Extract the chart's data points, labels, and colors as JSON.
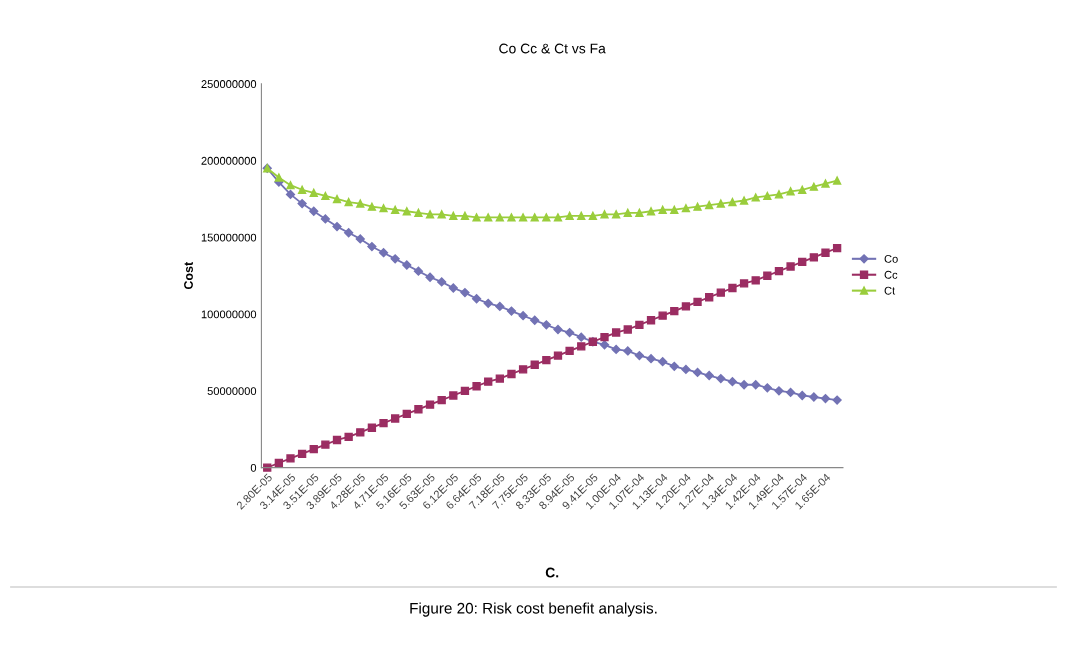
{
  "chart_data": {
    "type": "line",
    "title": "Co Cc & Ct vs Fa",
    "xlabel": "C.",
    "ylabel": "Cost",
    "annotations": [
      "Figure 20: Risk cost benefit analysis."
    ],
    "categories": [
      "2.80E-05",
      null,
      "3.14E-05",
      null,
      "3.51E-05",
      null,
      "3.89E-05",
      null,
      "4.28E-05",
      null,
      "4.71E-05",
      null,
      "5.16E-05",
      null,
      "5.63E-05",
      null,
      "6.12E-05",
      null,
      "6.64E-05",
      null,
      "7.18E-05",
      null,
      "7.75E-05",
      null,
      "8.33E-05",
      null,
      "8.94E-05",
      null,
      "9.41E-05",
      null,
      "1.00E-04",
      null,
      "1.07E-04",
      null,
      "1.13E-04",
      null,
      "1.20E-04",
      null,
      "1.27E-04",
      null,
      "1.34E-04",
      null,
      "1.42E-04",
      null,
      "1.49E-04",
      null,
      "1.57E-04",
      null,
      "1.65E-04",
      null
    ],
    "series": [
      {
        "name": "Co",
        "color": "#7272b4",
        "marker": "diamond",
        "values": [
          195000000,
          186000000,
          178000000,
          172000000,
          167000000,
          162000000,
          157000000,
          153000000,
          149000000,
          144000000,
          140000000,
          136000000,
          132000000,
          128000000,
          124000000,
          121000000,
          117000000,
          114000000,
          110000000,
          107000000,
          105000000,
          102000000,
          99000000,
          96000000,
          93000000,
          90000000,
          88000000,
          85000000,
          82000000,
          80000000,
          77000000,
          76000000,
          73000000,
          71000000,
          69000000,
          66000000,
          64000000,
          62000000,
          60000000,
          58000000,
          56000000,
          54000000,
          54000000,
          52000000,
          50000000,
          49000000,
          47000000,
          46000000,
          45000000,
          44000000
        ]
      },
      {
        "name": "Cc",
        "color": "#9b2d62",
        "marker": "square",
        "values": [
          0,
          3000000,
          6000000,
          9000000,
          12000000,
          15000000,
          18000000,
          20000000,
          23000000,
          26000000,
          29000000,
          32000000,
          35000000,
          38000000,
          41000000,
          44000000,
          47000000,
          50000000,
          53000000,
          56000000,
          58000000,
          61000000,
          64000000,
          67000000,
          70000000,
          73000000,
          76000000,
          79000000,
          82000000,
          85000000,
          88000000,
          90000000,
          93000000,
          96000000,
          99000000,
          102000000,
          105000000,
          108000000,
          111000000,
          114000000,
          117000000,
          120000000,
          122000000,
          125000000,
          128000000,
          131000000,
          134000000,
          137000000,
          140000000,
          143000000
        ]
      },
      {
        "name": "Ct",
        "color": "#9acd3c",
        "marker": "triangle",
        "values": [
          195000000,
          189000000,
          184000000,
          181000000,
          179000000,
          177000000,
          175000000,
          173000000,
          172000000,
          170000000,
          169000000,
          168000000,
          167000000,
          166000000,
          165000000,
          165000000,
          164000000,
          164000000,
          163000000,
          163000000,
          163000000,
          163000000,
          163000000,
          163000000,
          163000000,
          163000000,
          164000000,
          164000000,
          164000000,
          165000000,
          165000000,
          166000000,
          166000000,
          167000000,
          168000000,
          168000000,
          169000000,
          170000000,
          171000000,
          172000000,
          173000000,
          174000000,
          176000000,
          177000000,
          178000000,
          180000000,
          181000000,
          183000000,
          185000000,
          187000000
        ]
      }
    ],
    "ylim": [
      0,
      250000000
    ],
    "yticks": [
      0,
      50000000,
      100000000,
      150000000,
      200000000,
      250000000
    ],
    "grid": false,
    "legend": "right",
    "line_style": "solid"
  }
}
